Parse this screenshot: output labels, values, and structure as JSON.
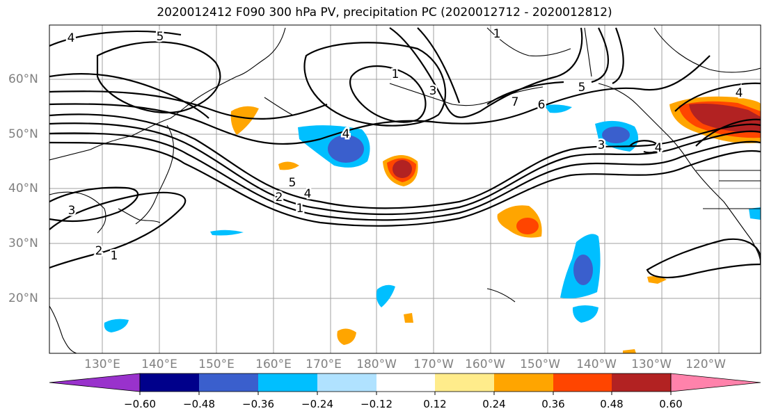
{
  "title": "2020012412 F090 300 hPa PV, precipitation PC (2020012712 - 2020012812)",
  "map": {
    "lat_labels": [
      "60°N",
      "50°N",
      "40°N",
      "30°N",
      "20°N"
    ],
    "lon_labels": [
      "130°E",
      "140°E",
      "150°E",
      "160°E",
      "170°E",
      "180°W",
      "170°W",
      "160°W",
      "150°W",
      "140°W",
      "130°W",
      "120°W"
    ],
    "contour_labels": [
      "4",
      "5",
      "1",
      "1",
      "3",
      "4",
      "7",
      "6",
      "5",
      "4",
      "5",
      "4",
      "2",
      "1",
      "3",
      "2",
      "1",
      "3",
      "4"
    ],
    "land_color": "#000000",
    "grid_color": "#a0a0a0"
  },
  "colorbar": {
    "colors": [
      "#9932cc",
      "#00008b",
      "#3a5fcd",
      "#00bfff",
      "#b0e2ff",
      "#ffffff",
      "#ffec8b",
      "#ffa500",
      "#ff4500",
      "#b22222",
      "#ff82ab"
    ],
    "tick_labels": [
      "−0.60",
      "−0.48",
      "−0.36",
      "−0.24",
      "−0.12",
      "0.12",
      "0.24",
      "0.36",
      "0.48",
      "0.60"
    ]
  }
}
